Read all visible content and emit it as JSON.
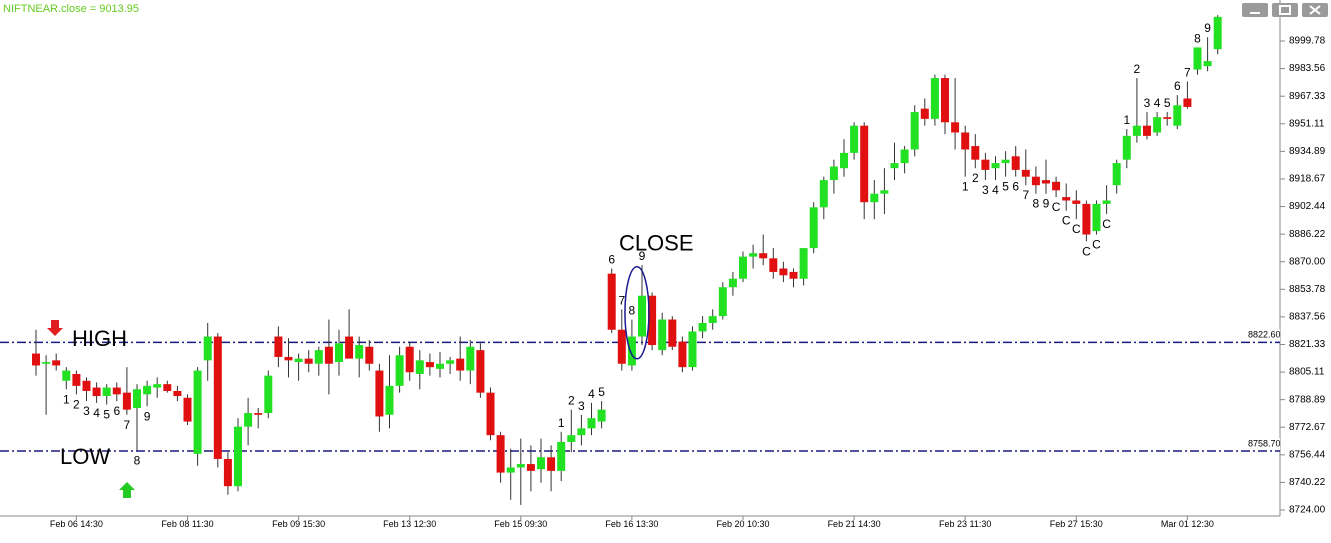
{
  "chart_data": {
    "type": "candlestick",
    "title": "NIFTNEAR.close = 9013.95",
    "categories": [
      null,
      null,
      null,
      null,
      "Feb 06 14:30",
      null,
      null,
      null,
      null,
      null,
      null,
      null,
      null,
      null,
      null,
      "Feb 08 11:30",
      null,
      null,
      null,
      null,
      null,
      null,
      null,
      null,
      null,
      null,
      "Feb 09 15:30",
      null,
      null,
      null,
      null,
      null,
      null,
      null,
      null,
      null,
      null,
      "Feb 13 12:30",
      null,
      null,
      null,
      null,
      null,
      null,
      null,
      null,
      null,
      null,
      "Feb 15 09:30",
      null,
      null,
      null,
      null,
      null,
      null,
      null,
      null,
      null,
      null,
      "Feb 16 13:30",
      null,
      null,
      null,
      null,
      null,
      null,
      null,
      null,
      null,
      null,
      "Feb 20 10:30",
      null,
      null,
      null,
      null,
      null,
      null,
      null,
      null,
      null,
      null,
      "Feb 21 14:30",
      null,
      null,
      null,
      null,
      null,
      null,
      null,
      null,
      null,
      null,
      "Feb 23 11:30",
      null,
      null,
      null,
      null,
      null,
      null,
      null,
      null,
      null,
      null,
      "Feb 27 15:30",
      null,
      null,
      null,
      null,
      null,
      null,
      null,
      null,
      null,
      null,
      "Mar 01 12:30",
      null,
      null,
      null
    ],
    "open": [
      8816,
      8810,
      8812,
      8800,
      8804,
      8800,
      8796,
      8791,
      8796,
      8793,
      8784,
      8792,
      8796,
      8798,
      8794,
      8790,
      8757,
      8812,
      8826,
      8754,
      8738,
      8773,
      8781,
      8781,
      8826,
      8814,
      8811,
      8813,
      8810,
      8820,
      8811,
      8826,
      8813,
      8820,
      8806,
      8780,
      8797,
      8820,
      8804,
      8811,
      8807,
      8810,
      8813,
      8806,
      8818,
      8793,
      8768,
      8746,
      8749,
      8751,
      8748,
      8755,
      8747,
      8764,
      8768,
      8772,
      8776,
      8863,
      8830,
      8809,
      8826,
      8850,
      8818,
      8836,
      8823,
      8808,
      8829,
      8834,
      8838,
      8855,
      8860,
      8873,
      8875,
      8872,
      8866,
      8864,
      8860,
      8878,
      8902,
      8918,
      8925,
      8934,
      8950,
      8905,
      8910,
      8925,
      8928,
      8936,
      8960,
      8954,
      8978,
      8952,
      8946,
      8938,
      8930,
      8925,
      8928,
      8932,
      8924,
      8920,
      8918,
      8917,
      8908,
      8906,
      8904,
      8888,
      8904,
      8915,
      8930,
      8944,
      8950,
      8946,
      8955,
      8950,
      8966,
      8983,
      8985,
      8995
    ],
    "high": [
      8830,
      8815,
      8816,
      8808,
      8806,
      8802,
      8799,
      8798,
      8799,
      8808,
      8798,
      8800,
      8802,
      8800,
      8797,
      8792,
      8808,
      8834,
      8828,
      8758,
      8778,
      8790,
      8784,
      8806,
      8832,
      8825,
      8816,
      8818,
      8820,
      8836,
      8830,
      8842,
      8826,
      8824,
      8810,
      8815,
      8820,
      8823,
      8818,
      8816,
      8817,
      8814,
      8826,
      8824,
      8822,
      8796,
      8770,
      8760,
      8766,
      8762,
      8766,
      8762,
      8770,
      8783,
      8780,
      8787,
      8788,
      8866,
      8842,
      8836,
      8868,
      8852,
      8840,
      8838,
      8826,
      8832,
      8838,
      8842,
      8858,
      8864,
      8876,
      8880,
      8886,
      8878,
      8870,
      8866,
      8878,
      8905,
      8920,
      8930,
      8942,
      8952,
      8952,
      8918,
      8925,
      8940,
      8938,
      8962,
      8966,
      8980,
      8980,
      8978,
      8950,
      8945,
      8934,
      8932,
      8935,
      8938,
      8936,
      8926,
      8930,
      8920,
      8916,
      8912,
      8906,
      8906,
      8915,
      8930,
      8948,
      8978,
      8958,
      8958,
      8958,
      8968,
      8976,
      8996,
      9002,
      9015
    ],
    "low": [
      8803,
      8780,
      8806,
      8795,
      8792,
      8788,
      8787,
      8786,
      8788,
      8780,
      8759,
      8785,
      8790,
      8793,
      8788,
      8774,
      8750,
      8800,
      8749,
      8733,
      8735,
      8762,
      8772,
      8778,
      8808,
      8802,
      8800,
      8805,
      8803,
      8792,
      8803,
      8815,
      8802,
      8806,
      8770,
      8772,
      8793,
      8800,
      8795,
      8803,
      8802,
      8804,
      8800,
      8798,
      8790,
      8765,
      8740,
      8730,
      8727,
      8735,
      8740,
      8735,
      8741,
      8758,
      8762,
      8768,
      8772,
      8828,
      8806,
      8806,
      8821,
      8818,
      8815,
      8818,
      8805,
      8806,
      8825,
      8830,
      8836,
      8850,
      8858,
      8866,
      8868,
      8860,
      8858,
      8855,
      8856,
      8875,
      8895,
      8910,
      8920,
      8930,
      8895,
      8895,
      8898,
      8918,
      8922,
      8932,
      8950,
      8950,
      8945,
      8936,
      8920,
      8925,
      8918,
      8918,
      8920,
      8920,
      8915,
      8910,
      8910,
      8908,
      8900,
      8895,
      8882,
      8886,
      8898,
      8910,
      8925,
      8940,
      8942,
      8944,
      8950,
      8948,
      8960,
      8980,
      8982,
      8992
    ],
    "close": [
      8809,
      8811,
      8809,
      8806,
      8797,
      8794,
      8791,
      8796,
      8792,
      8783,
      8795,
      8797,
      8798,
      8794,
      8791,
      8776,
      8806,
      8826,
      8754,
      8738,
      8773,
      8781,
      8780,
      8803,
      8814,
      8812,
      8813,
      8810,
      8818,
      8810,
      8822,
      8813,
      8821,
      8810,
      8779,
      8797,
      8815,
      8805,
      8812,
      8808,
      8810,
      8812,
      8806,
      8820,
      8793,
      8768,
      8746,
      8749,
      8751,
      8747,
      8755,
      8747,
      8764,
      8768,
      8772,
      8778,
      8783,
      8830,
      8810,
      8826,
      8850,
      8821,
      8836,
      8820,
      8808,
      8829,
      8834,
      8838,
      8855,
      8860,
      8873,
      8875,
      8872,
      8864,
      8862,
      8860,
      8878,
      8902,
      8918,
      8926,
      8934,
      8950,
      8905,
      8910,
      8912,
      8928,
      8936,
      8958,
      8954,
      8978,
      8952,
      8946,
      8936,
      8930,
      8924,
      8928,
      8930,
      8924,
      8920,
      8915,
      8916,
      8912,
      8906,
      8904,
      8886,
      8904,
      8906,
      8928,
      8944,
      8950,
      8944,
      8955,
      8954,
      8962,
      8961,
      8996,
      8988,
      9014
    ],
    "up_color": "#22e022",
    "down_color": "#e01010",
    "counts_above": [
      {
        "index": 52,
        "text": "1"
      },
      {
        "index": 53,
        "text": "2"
      },
      {
        "index": 54,
        "text": "3"
      },
      {
        "index": 55,
        "text": "4"
      },
      {
        "index": 56,
        "text": "5"
      },
      {
        "index": 57,
        "text": "6"
      },
      {
        "index": 58,
        "text": "7"
      },
      {
        "index": 59,
        "text": "8"
      },
      {
        "index": 60,
        "text": "9"
      },
      {
        "index": 108,
        "text": "1"
      },
      {
        "index": 109,
        "text": "2"
      },
      {
        "index": 110,
        "text": "3"
      },
      {
        "index": 111,
        "text": "4"
      },
      {
        "index": 112,
        "text": "5"
      },
      {
        "index": 113,
        "text": "6"
      },
      {
        "index": 114,
        "text": "7"
      },
      {
        "index": 115,
        "text": "8"
      },
      {
        "index": 116,
        "text": "9"
      }
    ],
    "counts_below": [
      {
        "index": 3,
        "text": "1"
      },
      {
        "index": 4,
        "text": "2"
      },
      {
        "index": 5,
        "text": "3"
      },
      {
        "index": 6,
        "text": "4"
      },
      {
        "index": 7,
        "text": "5"
      },
      {
        "index": 8,
        "text": "6"
      },
      {
        "index": 9,
        "text": "7"
      },
      {
        "index": 10,
        "text": "8"
      },
      {
        "index": 11,
        "text": "9"
      },
      {
        "index": 92,
        "text": "1"
      },
      {
        "index": 93,
        "text": "2"
      },
      {
        "index": 94,
        "text": "3"
      },
      {
        "index": 95,
        "text": "4"
      },
      {
        "index": 96,
        "text": "5"
      },
      {
        "index": 97,
        "text": "6"
      },
      {
        "index": 98,
        "text": "7"
      },
      {
        "index": 99,
        "text": "8"
      },
      {
        "index": 100,
        "text": "9"
      },
      {
        "index": 101,
        "text": "C"
      },
      {
        "index": 102,
        "text": "C"
      },
      {
        "index": 103,
        "text": "C"
      },
      {
        "index": 104,
        "text": "C"
      },
      {
        "index": 105,
        "text": "C"
      },
      {
        "index": 106,
        "text": "C"
      }
    ],
    "levels": [
      {
        "name": "HIGH",
        "value": 8822.6,
        "label": "8822.60"
      },
      {
        "name": "LOW",
        "value": 8758.7,
        "label": "8758.70"
      }
    ],
    "close_annotation": "CLOSE",
    "ylim": [
      8720.47,
      9023.9
    ],
    "yticks": [
      {
        "value": 8724,
        "label": "8724.00"
      },
      8740.22,
      8756.44,
      8772.67,
      8788.89,
      8805.11,
      8821.33,
      8837.56,
      8853.78,
      {
        "value": 8870,
        "label": "8870.00"
      },
      8886.22,
      8902.44,
      8918.67,
      8934.89,
      8951.11,
      8967.33,
      8983.56,
      8999.78
    ]
  }
}
